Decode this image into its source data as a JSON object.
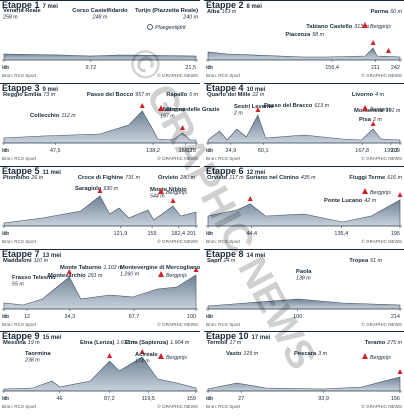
{
  "watermark": "© GRAPHIC NEWS",
  "km_label": "km",
  "source": "Bron: RCS Sport",
  "credit": "© GRAPHIC NEWS",
  "mountain_legend": "Bergprijs",
  "stages": [
    {
      "title": "Etappe 1",
      "date": "7 mei",
      "legend": "Ploegentijdrit",
      "places": [
        {
          "name": "Venaria Reale",
          "elev": "258 m"
        },
        {
          "name": "Corso Castelfidardo",
          "elev": "248 m"
        },
        {
          "name": "Turijn (Piazzetta Reale)",
          "elev": "240 m"
        }
      ],
      "km": [
        "0",
        "9,72",
        "21,5"
      ]
    },
    {
      "title": "Etappe 2",
      "date": "8 mei",
      "places": [
        {
          "name": "Alba",
          "elev": "163 m"
        },
        {
          "name": "Parma",
          "elev": "60 m"
        },
        {
          "name": "Tabiano Castello",
          "elev": "313 m"
        },
        {
          "name": "Piacenza",
          "elev": "58 m"
        }
      ],
      "km": [
        "0",
        "156,4",
        "211",
        "242"
      ]
    },
    {
      "title": "Etappe 3",
      "date": "9 mei",
      "places": [
        {
          "name": "Reggio Emilia",
          "elev": "73 m"
        },
        {
          "name": "Passo del Bocco",
          "elev": "957 m"
        },
        {
          "name": "Rapallo",
          "elev": "5 m"
        },
        {
          "name": "Collecchio",
          "elev": "112 m"
        },
        {
          "name": "Madonna delle Grazie",
          "elev": "197 m"
        }
      ],
      "km": [
        "0",
        "47,5",
        "138,2",
        "168,2",
        "178"
      ]
    },
    {
      "title": "Etappe 4",
      "date": "10 mei",
      "places": [
        {
          "name": "Quarto dei Mille",
          "elev": "22 m"
        },
        {
          "name": "Livorno",
          "elev": "4 m"
        },
        {
          "name": "Sestri Levante",
          "elev": "2 m"
        },
        {
          "name": "Passo del Bracco",
          "elev": "613 m"
        },
        {
          "name": "Montenero",
          "elev": "191 m"
        },
        {
          "name": "Pisa",
          "elev": "2 m"
        }
      ],
      "km": [
        "0",
        "24,9",
        "60,1",
        "167,8",
        "199,2",
        "209"
      ]
    },
    {
      "title": "Etappe 5",
      "date": "11 mei",
      "places": [
        {
          "name": "Piombino",
          "elev": "26 m"
        },
        {
          "name": "Croce di Fighine",
          "elev": "731 m"
        },
        {
          "name": "Orvieto",
          "elev": "280 m"
        },
        {
          "name": "Saragiolo",
          "elev": "930 m"
        },
        {
          "name": "Monte Nibbio",
          "elev": "544 m"
        }
      ],
      "km": [
        "0",
        "121,9",
        "155",
        "182,4",
        "201"
      ]
    },
    {
      "title": "Etappe 6",
      "date": "12 mei",
      "places": [
        {
          "name": "Orvieto",
          "elev": "117 m"
        },
        {
          "name": "Soriano nel Cimino",
          "elev": "435 m"
        },
        {
          "name": "Fiuggi Terme",
          "elev": "616 m"
        },
        {
          "name": "Ponte Lucano",
          "elev": "42 m"
        }
      ],
      "km": [
        "0",
        "44,4",
        "135,4",
        "195"
      ]
    },
    {
      "title": "Etappe 7",
      "date": "13 mei",
      "places": [
        {
          "name": "Maddaloni",
          "elev": "110 m"
        },
        {
          "name": "Monte Taburno",
          "elev": "1.102 m"
        },
        {
          "name": "Montevergine di Mercogliano",
          "elev": "1.260 m"
        },
        {
          "name": "Frasso Telesino",
          "elev": "55 m"
        },
        {
          "name": "Montesarchio",
          "elev": "291 m"
        }
      ],
      "km": [
        "0",
        "12",
        "34,3",
        "67,7",
        "100"
      ]
    },
    {
      "title": "Etappe 8",
      "date": "14 mei",
      "places": [
        {
          "name": "Sapri",
          "elev": "24 m"
        },
        {
          "name": "Tropea",
          "elev": "61 m"
        },
        {
          "name": "Paola",
          "elev": "138 m"
        }
      ],
      "km": [
        "0",
        "100",
        "214"
      ]
    },
    {
      "title": "Etappe 9",
      "date": "15 mei",
      "places": [
        {
          "name": "Messina",
          "elev": "19 m"
        },
        {
          "name": "Etna (Lenza)",
          "elev": "1.631 m"
        },
        {
          "name": "Etna (Sapienza)",
          "elev": "1.904 m"
        },
        {
          "name": "Taormina",
          "elev": "238 m"
        },
        {
          "name": "Acireale",
          "elev": "174 m"
        }
      ],
      "km": [
        "0",
        "46",
        "87,2",
        "119,5",
        "159"
      ]
    },
    {
      "title": "Etappe 10",
      "date": "17 mei",
      "places": [
        {
          "name": "Termoli",
          "elev": "17 m"
        },
        {
          "name": "Teramo",
          "elev": "275 m"
        },
        {
          "name": "Vasto",
          "elev": "129 m"
        },
        {
          "name": "Pescara",
          "elev": "3 m"
        }
      ],
      "km": [
        "0",
        "27",
        "93,9",
        "156"
      ]
    }
  ]
}
